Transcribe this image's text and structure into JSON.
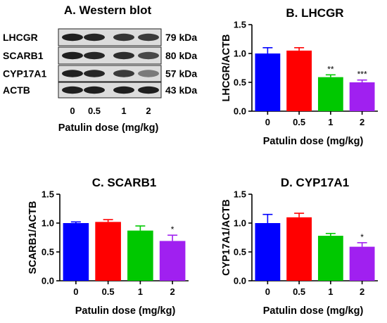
{
  "western_blot": {
    "title": "A. Western blot",
    "proteins": [
      "LHCGR",
      "SCARB1",
      "CYP17A1",
      "ACTB"
    ],
    "sizes": [
      "79 kDa",
      "80 kDa",
      "57 kDa",
      "43 kDa"
    ],
    "lanes": [
      "0",
      "0.5",
      "1",
      "2"
    ],
    "xlabel": "Patulin dose (mg/kg)"
  },
  "colors": {
    "0": "#0000ff",
    "0.5": "#ff0000",
    "1": "#00c800",
    "2": "#a020f0"
  },
  "chart_data": [
    {
      "type": "bar",
      "title": "B. LHCGR",
      "ylabel": "LHCGR/ACTB",
      "xlabel": "Patulin dose  (mg/kg)",
      "categories": [
        "0",
        "0.5",
        "1",
        "2"
      ],
      "values": [
        1.0,
        1.05,
        0.59,
        0.5
      ],
      "errors": [
        0.1,
        0.05,
        0.04,
        0.04
      ],
      "significance": [
        "",
        "",
        "**",
        "***"
      ],
      "ylim": [
        0,
        1.5
      ],
      "yticks": [
        "0.0",
        "0.5",
        "1.0",
        "1.5"
      ],
      "grid": false
    },
    {
      "type": "bar",
      "title": "C. SCARB1",
      "ylabel": "SCARB1/ACTB",
      "xlabel": "Patulin dose  (mg/kg)",
      "categories": [
        "0",
        "0.5",
        "1",
        "2"
      ],
      "values": [
        1.0,
        1.02,
        0.87,
        0.69
      ],
      "errors": [
        0.02,
        0.04,
        0.08,
        0.1
      ],
      "significance": [
        "",
        "",
        "",
        "*"
      ],
      "ylim": [
        0,
        1.5
      ],
      "yticks": [
        "0.0",
        "0.5",
        "1.0",
        "1.5"
      ],
      "grid": false
    },
    {
      "type": "bar",
      "title": "D. CYP17A1",
      "ylabel": "CYP17A1/ACTB",
      "xlabel": "Patulin dose  (mg/kg)",
      "categories": [
        "0",
        "0.5",
        "1",
        "2"
      ],
      "values": [
        1.0,
        1.1,
        0.78,
        0.59
      ],
      "errors": [
        0.15,
        0.07,
        0.04,
        0.07
      ],
      "significance": [
        "",
        "",
        "",
        "*"
      ],
      "ylim": [
        0,
        1.5
      ],
      "yticks": [
        "0.0",
        "0.5",
        "1.0",
        "1.5"
      ],
      "grid": false
    }
  ]
}
